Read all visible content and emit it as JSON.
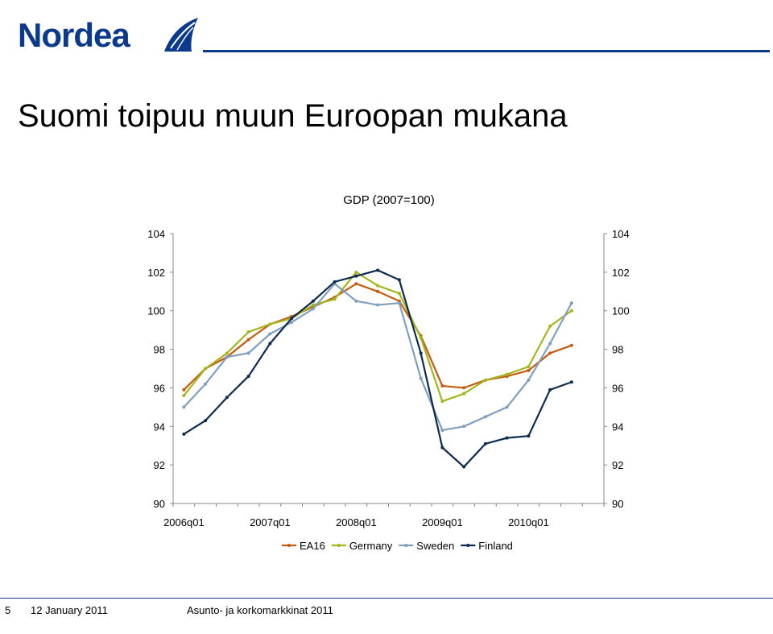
{
  "brand": {
    "name": "Nordea"
  },
  "slide": {
    "title": "Suomi toipuu muun Euroopan mukana"
  },
  "footer": {
    "page": "5",
    "date": "12 January 2011",
    "subject": "Asunto- ja korkomarkkinat 2011"
  },
  "chart_data": {
    "type": "line",
    "title": "GDP (2007=100)",
    "x": [
      "2006q01",
      "2006q02",
      "2006q03",
      "2006q04",
      "2007q01",
      "2007q02",
      "2007q03",
      "2007q04",
      "2008q01",
      "2008q02",
      "2008q03",
      "2008q04",
      "2009q01",
      "2009q02",
      "2009q03",
      "2009q04",
      "2010q01",
      "2010q02",
      "2010q03",
      "2010q04"
    ],
    "x_tick_labels": [
      "2006q01",
      "2007q01",
      "2008q01",
      "2009q01",
      "2010q01"
    ],
    "ylim": [
      90,
      104
    ],
    "y_ticks": [
      90,
      92,
      94,
      96,
      98,
      100,
      102,
      104
    ],
    "y_axis": "left and right",
    "grid": false,
    "legend": "bottom",
    "series": [
      {
        "name": "EA16",
        "color": "#c55a11",
        "values": [
          95.9,
          97.0,
          97.6,
          98.5,
          99.3,
          99.7,
          100.2,
          100.7,
          101.4,
          101.0,
          100.5,
          98.7,
          96.1,
          96.0,
          96.4,
          96.6,
          96.9,
          97.8,
          98.2,
          null
        ]
      },
      {
        "name": "Germany",
        "color": "#a5b51d",
        "values": [
          95.6,
          97.0,
          97.8,
          98.9,
          99.3,
          99.6,
          100.3,
          100.6,
          102.0,
          101.3,
          100.9,
          98.6,
          95.3,
          95.7,
          96.4,
          96.7,
          97.1,
          99.2,
          100.0,
          null
        ]
      },
      {
        "name": "Sweden",
        "color": "#7f9fbf",
        "values": [
          95.0,
          96.2,
          97.6,
          97.8,
          98.8,
          99.4,
          100.1,
          101.4,
          100.5,
          100.3,
          100.4,
          96.5,
          93.8,
          94.0,
          94.5,
          95.0,
          96.4,
          98.3,
          100.4,
          null
        ]
      },
      {
        "name": "Finland",
        "color": "#0d2b4e",
        "values": [
          93.6,
          94.3,
          95.5,
          96.6,
          98.3,
          99.6,
          100.5,
          101.5,
          101.8,
          102.1,
          101.6,
          97.8,
          92.9,
          91.9,
          93.1,
          93.4,
          93.5,
          95.9,
          96.3,
          null
        ]
      }
    ]
  }
}
